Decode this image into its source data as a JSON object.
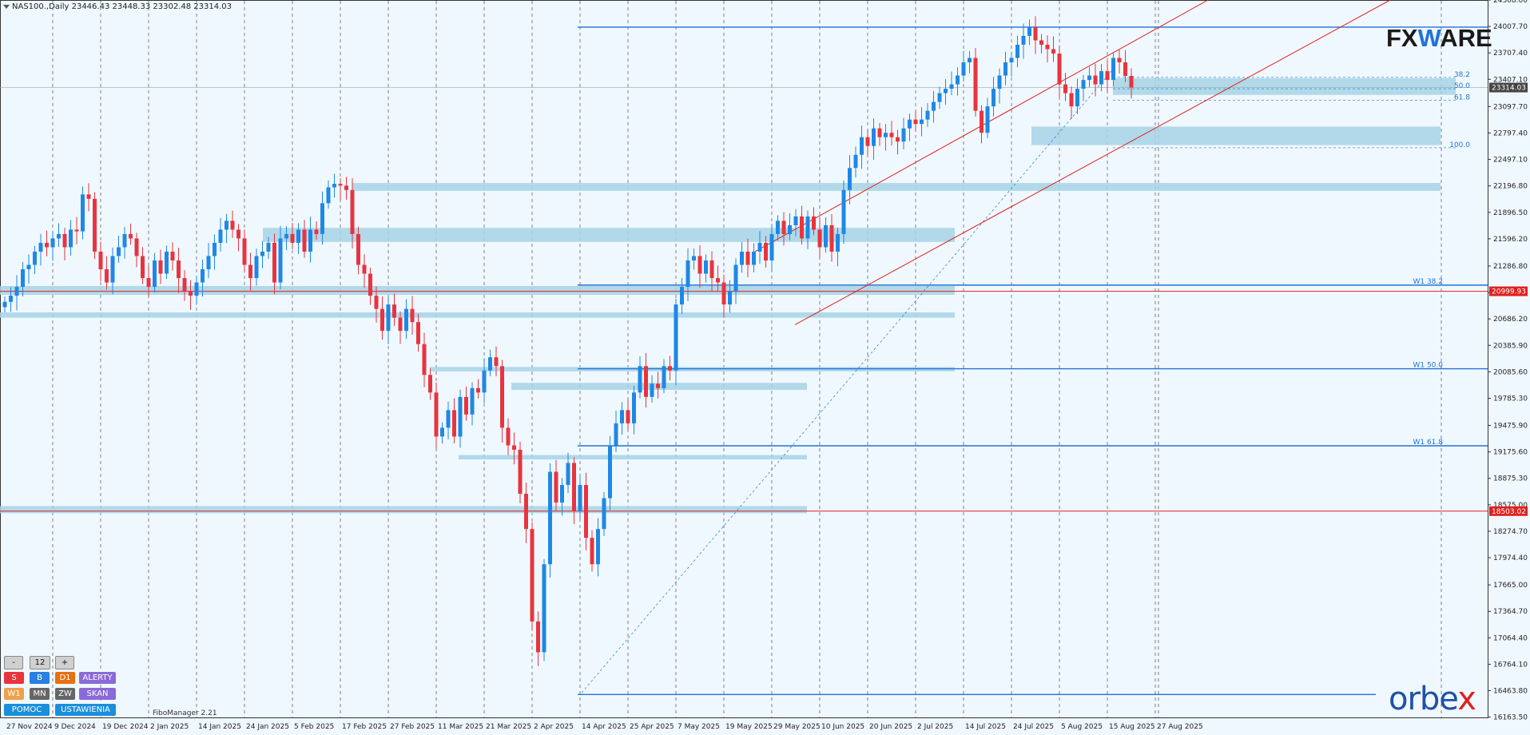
{
  "header": {
    "symbol_text": "NAS100.,Daily  23446.43 23448.33 23302.48 23314.03"
  },
  "brand": {
    "fx_pre": "FX",
    "fx_w": "W",
    "fx_post": "ARE",
    "orbex_pre": "orbe",
    "orbex_x": "x"
  },
  "indicator_label": "FiboManager 2.21",
  "panel": {
    "minus": "-",
    "value": "12",
    "plus": "+",
    "s": "S",
    "b": "B",
    "d1": "D1",
    "alerty": "ALERTY",
    "w1": "W1",
    "mn": "MN",
    "zw": "ZW",
    "skan": "SKAN",
    "pomoc": "POMOC",
    "ustawienia": "USTAWIENIA"
  },
  "colors": {
    "bg": "#f0f8ff",
    "bull": "#1e88e5",
    "bear": "#e8343e",
    "zone": "#a6d3e6",
    "level": "#1e73d8",
    "channel": "#e0201d"
  },
  "chart_data": {
    "type": "candlestick",
    "y_range": [
      16160,
      24308
    ],
    "price_ticks": [
      "24308.00",
      "24007.70",
      "23707.40",
      "23407.10",
      "23097.70",
      "22797.40",
      "22497.10",
      "22196.80",
      "21896.50",
      "21596.20",
      "21286.80",
      "20986.50",
      "20686.20",
      "20385.90",
      "20085.60",
      "19785.30",
      "19475.90",
      "19175.60",
      "18875.30",
      "18575.00",
      "18274.70",
      "17974.40",
      "17665.00",
      "17364.70",
      "17064.40",
      "16764.10",
      "16463.80",
      "16163.50"
    ],
    "date_ticks": [
      {
        "i": 0,
        "label": "27 Nov 2024"
      },
      {
        "i": 8,
        "label": "9 Dec 2024"
      },
      {
        "i": 16,
        "label": "19 Dec 2024"
      },
      {
        "i": 24,
        "label": "2 Jan 2025"
      },
      {
        "i": 32,
        "label": "14 Jan 2025"
      },
      {
        "i": 40,
        "label": "24 Jan 2025"
      },
      {
        "i": 48,
        "label": "5 Feb 2025"
      },
      {
        "i": 56,
        "label": "17 Feb 2025"
      },
      {
        "i": 64,
        "label": "27 Feb 2025"
      },
      {
        "i": 72,
        "label": "11 Mar 2025"
      },
      {
        "i": 80,
        "label": "21 Mar 2025"
      },
      {
        "i": 88,
        "label": "2 Apr 2025"
      },
      {
        "i": 96,
        "label": "14 Apr 2025"
      },
      {
        "i": 104,
        "label": "25 Apr 2025"
      },
      {
        "i": 112,
        "label": "7 May 2025"
      },
      {
        "i": 120,
        "label": "19 May 2025"
      },
      {
        "i": 128,
        "label": "29 May 2025"
      },
      {
        "i": 136,
        "label": "10 Jun 2025"
      },
      {
        "i": 144,
        "label": "20 Jun 2025"
      },
      {
        "i": 152,
        "label": "2 Jul 2025"
      },
      {
        "i": 160,
        "label": "14 Jul 2025"
      },
      {
        "i": 168,
        "label": "24 Jul 2025"
      },
      {
        "i": 176,
        "label": "5 Aug 2025"
      },
      {
        "i": 184,
        "label": "15 Aug 2025"
      },
      {
        "i": 192,
        "label": "27 Aug 2025"
      }
    ],
    "closes": [
      20880,
      20950,
      21050,
      21250,
      21300,
      21450,
      21550,
      21500,
      21600,
      21650,
      21500,
      21700,
      21680,
      22100,
      22050,
      21450,
      21250,
      21100,
      21400,
      21500,
      21650,
      21600,
      21400,
      21150,
      21050,
      21350,
      21200,
      21450,
      21350,
      21150,
      21000,
      20950,
      21100,
      21250,
      21400,
      21550,
      21700,
      21800,
      21700,
      21600,
      21300,
      21150,
      21400,
      21450,
      21550,
      21100,
      21600,
      21650,
      21550,
      21700,
      21450,
      21700,
      21650,
      22000,
      22180,
      22220,
      22200,
      22150,
      21650,
      21300,
      21200,
      20950,
      20800,
      20550,
      20850,
      20700,
      20550,
      20800,
      20650,
      20400,
      20050,
      19850,
      19350,
      19450,
      19650,
      19350,
      19800,
      19600,
      19900,
      19850,
      20100,
      20250,
      20150,
      19450,
      19250,
      19200,
      18700,
      18300,
      17250,
      16900,
      17900,
      18950,
      18600,
      18800,
      19050,
      18500,
      18800,
      18200,
      17900,
      18300,
      18650,
      19250,
      19500,
      19650,
      19500,
      19850,
      20150,
      19800,
      19950,
      19900,
      20150,
      20100,
      20850,
      21050,
      21350,
      21400,
      21200,
      21350,
      21150,
      21100,
      20850,
      21000,
      21300,
      21450,
      21300,
      21450,
      21550,
      21350,
      21650,
      21800,
      21650,
      21750,
      21850,
      21600,
      21850,
      21700,
      21500,
      21750,
      21450,
      21650,
      22150,
      22400,
      22550,
      22750,
      22650,
      22850,
      22750,
      22800,
      22750,
      22700,
      22850,
      22950,
      22900,
      22950,
      23050,
      23150,
      23250,
      23300,
      23350,
      23450,
      23600,
      23650,
      23050,
      22800,
      23100,
      23300,
      23450,
      23600,
      23650,
      23800,
      23900,
      24000,
      23850,
      23800,
      23750,
      23700,
      23350,
      23250,
      23100,
      23300,
      23400,
      23450,
      23350,
      23500,
      23400,
      23650,
      23600,
      23446,
      23314
    ],
    "price_labels": {
      "current": "23314.03",
      "level_high": "20999.93",
      "level_low": "18503.02"
    },
    "fib_labels": [
      "38.2",
      "50.0",
      "61.8",
      "100.0"
    ],
    "level_labels": [
      "W1 38.2",
      "W1 50.0",
      "W1 61.8"
    ]
  }
}
